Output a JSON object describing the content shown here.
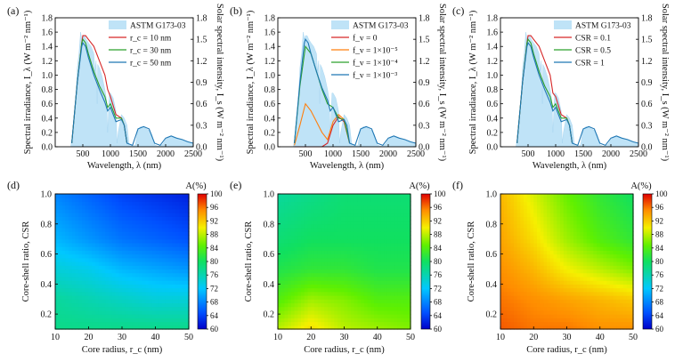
{
  "top_common": {
    "xlabel": "Wavelength, λ (nm)",
    "ylabel_left": "Spectral irradiance, I_λ (W m⁻² nm⁻¹)",
    "ylabel_right": "Solar spectral intensity, I_s (W m⁻² nm⁻¹)",
    "xticks": [
      "500",
      "1000",
      "1500",
      "2000",
      "2500"
    ],
    "yticks_left": [
      "0.0",
      "0.2",
      "0.4",
      "0.6",
      "0.8",
      "1.0",
      "1.2",
      "1.4",
      "1.6",
      "1.8"
    ],
    "yticks_right": [
      "0.0",
      "0.3",
      "0.6",
      "0.9",
      "1.2",
      "1.5",
      "1.8"
    ]
  },
  "bottom_common": {
    "xlabel": "Core radius, r_c (nm)",
    "ylabel": "Core-shell ratio, CSR",
    "xticks": [
      "10",
      "20",
      "30",
      "40",
      "50"
    ],
    "yticks": [
      "0.2",
      "0.4",
      "0.6",
      "0.8",
      "1.0"
    ],
    "colorbar_title": "A(%)",
    "colorbar_ticks": [
      "60",
      "64",
      "68",
      "72",
      "76",
      "80",
      "84",
      "88",
      "92",
      "96",
      "100"
    ]
  },
  "chart_data": [
    {
      "panel": "(a)",
      "type": "line",
      "xlim": [
        0,
        2500
      ],
      "ylim": [
        0,
        1.8
      ],
      "y2lim": [
        0,
        1.8
      ],
      "reference": "ASTM G173-03",
      "series": [
        {
          "name": "r_c = 10 nm",
          "color": "#d62728",
          "x": [
            300,
            400,
            480,
            500,
            550,
            600,
            700,
            800,
            900,
            950,
            1000,
            1100,
            1200,
            1250,
            1300
          ],
          "y": [
            0.05,
            0.9,
            1.45,
            1.55,
            1.55,
            1.5,
            1.4,
            1.2,
            1.0,
            0.8,
            0.7,
            0.45,
            0.4,
            0.3,
            0.05
          ]
        },
        {
          "name": "r_c = 30 nm",
          "color": "#2ca02c",
          "x": [
            300,
            400,
            480,
            500,
            550,
            600,
            700,
            800,
            900,
            950,
            1000,
            1100,
            1200,
            1250,
            1300
          ],
          "y": [
            0.05,
            0.9,
            1.45,
            1.5,
            1.45,
            1.3,
            1.05,
            0.85,
            0.7,
            0.55,
            0.6,
            0.4,
            0.4,
            0.3,
            0.05
          ]
        },
        {
          "name": "r_c = 50 nm",
          "color": "#1f77b4",
          "x": [
            300,
            400,
            480,
            500,
            550,
            600,
            700,
            800,
            900,
            950,
            1000,
            1100,
            1200,
            1250,
            1300,
            1400,
            1500,
            1600,
            1700,
            1800,
            1900,
            2000,
            2100,
            2200,
            2300,
            2400,
            2500
          ],
          "y": [
            0.05,
            0.9,
            1.4,
            1.45,
            1.4,
            1.25,
            1.0,
            0.8,
            0.62,
            0.5,
            0.55,
            0.35,
            0.38,
            0.3,
            0.05,
            0.02,
            0.25,
            0.28,
            0.25,
            0.05,
            0.02,
            0.12,
            0.15,
            0.12,
            0.1,
            0.07,
            0.05
          ]
        }
      ]
    },
    {
      "panel": "(b)",
      "type": "line",
      "xlim": [
        0,
        2500
      ],
      "ylim": [
        0,
        1.8
      ],
      "y2lim": [
        0,
        1.8
      ],
      "reference": "ASTM G173-03",
      "series": [
        {
          "name": "f_v = 0",
          "color": "#d62728",
          "x": [
            300,
            400,
            500,
            600,
            700,
            800,
            900,
            1000,
            1100,
            1200,
            1300
          ],
          "y": [
            0,
            0,
            0,
            0,
            0,
            0,
            0.05,
            0.3,
            0.42,
            0.35,
            0.05
          ]
        },
        {
          "name": "f_v = 1×10⁻⁵",
          "color": "#ff7f0e",
          "x": [
            300,
            400,
            500,
            600,
            700,
            800,
            900,
            1000,
            1100,
            1200,
            1300
          ],
          "y": [
            0.02,
            0.3,
            0.6,
            0.5,
            0.35,
            0.2,
            0.1,
            0.35,
            0.45,
            0.38,
            0.05
          ]
        },
        {
          "name": "f_v = 1×10⁻⁴",
          "color": "#2ca02c",
          "x": [
            300,
            400,
            500,
            600,
            700,
            800,
            900,
            1000,
            1100,
            1200,
            1300
          ],
          "y": [
            0.05,
            0.85,
            1.4,
            1.3,
            1.05,
            0.8,
            0.6,
            0.55,
            0.4,
            0.38,
            0.05
          ]
        },
        {
          "name": "f_v = 1×10⁻³",
          "color": "#1f77b4",
          "x": [
            300,
            400,
            480,
            500,
            550,
            600,
            700,
            800,
            900,
            950,
            1000,
            1100,
            1200,
            1250,
            1300,
            1400,
            1500,
            1600,
            1700,
            1800,
            1900,
            2000,
            2100,
            2200,
            2300,
            2400,
            2500
          ],
          "y": [
            0.05,
            0.9,
            1.45,
            1.5,
            1.45,
            1.3,
            1.05,
            0.82,
            0.65,
            0.5,
            0.55,
            0.35,
            0.38,
            0.3,
            0.05,
            0.02,
            0.25,
            0.28,
            0.25,
            0.05,
            0.02,
            0.12,
            0.15,
            0.12,
            0.1,
            0.07,
            0.05
          ]
        }
      ]
    },
    {
      "panel": "(c)",
      "type": "line",
      "xlim": [
        0,
        2500
      ],
      "ylim": [
        0,
        1.8
      ],
      "y2lim": [
        0,
        1.8
      ],
      "reference": "ASTM G173-03",
      "series": [
        {
          "name": "CSR = 0.1",
          "color": "#d62728",
          "x": [
            300,
            400,
            480,
            500,
            550,
            600,
            700,
            800,
            900,
            950,
            1000,
            1100,
            1200,
            1250,
            1300
          ],
          "y": [
            0.05,
            0.9,
            1.45,
            1.55,
            1.55,
            1.5,
            1.4,
            1.2,
            1.0,
            0.75,
            0.7,
            0.45,
            0.4,
            0.3,
            0.05
          ]
        },
        {
          "name": "CSR = 0.5",
          "color": "#2ca02c",
          "x": [
            300,
            400,
            480,
            500,
            550,
            600,
            700,
            800,
            900,
            950,
            1000,
            1100,
            1200,
            1250,
            1300
          ],
          "y": [
            0.05,
            0.9,
            1.45,
            1.5,
            1.45,
            1.3,
            1.05,
            0.85,
            0.7,
            0.55,
            0.6,
            0.4,
            0.4,
            0.3,
            0.05
          ]
        },
        {
          "name": "CSR = 1",
          "color": "#1f77b4",
          "x": [
            300,
            400,
            480,
            500,
            550,
            600,
            700,
            800,
            900,
            950,
            1000,
            1100,
            1200,
            1250,
            1300,
            1400,
            1500,
            1600,
            1700,
            1800,
            1900,
            2000,
            2100,
            2200,
            2300,
            2400,
            2500
          ],
          "y": [
            0.05,
            0.9,
            1.4,
            1.45,
            1.4,
            1.25,
            1.0,
            0.8,
            0.62,
            0.5,
            0.55,
            0.35,
            0.38,
            0.3,
            0.05,
            0.02,
            0.25,
            0.28,
            0.25,
            0.05,
            0.02,
            0.12,
            0.15,
            0.12,
            0.1,
            0.07,
            0.05
          ]
        }
      ]
    },
    {
      "panel": "(d)",
      "type": "heatmap",
      "xlim": [
        10,
        50
      ],
      "ylim": [
        0.1,
        1.0
      ],
      "zlim": [
        60,
        100
      ],
      "x": [
        10,
        20,
        30,
        40,
        50
      ],
      "y": [
        0.1,
        0.3,
        0.5,
        0.7,
        1.0
      ],
      "z": [
        [
          78,
          78,
          78,
          78,
          78
        ],
        [
          77,
          76,
          75,
          74,
          74
        ],
        [
          74,
          73,
          71,
          70,
          69
        ],
        [
          71,
          69,
          67,
          66,
          65
        ],
        [
          68,
          66,
          64,
          63,
          62
        ]
      ]
    },
    {
      "panel": "(e)",
      "type": "heatmap",
      "xlim": [
        10,
        50
      ],
      "ylim": [
        0.1,
        1.0
      ],
      "zlim": [
        60,
        100
      ],
      "x": [
        10,
        20,
        30,
        40,
        50
      ],
      "y": [
        0.1,
        0.3,
        0.5,
        0.7,
        1.0
      ],
      "z": [
        [
          88,
          91,
          88,
          87,
          86
        ],
        [
          84,
          87,
          86,
          84,
          84
        ],
        [
          81,
          82,
          82,
          81,
          81
        ],
        [
          79,
          80,
          80,
          80,
          80
        ],
        [
          77,
          78,
          79,
          79,
          79
        ]
      ]
    },
    {
      "panel": "(f)",
      "type": "heatmap",
      "xlim": [
        10,
        50
      ],
      "ylim": [
        0.1,
        1.0
      ],
      "zlim": [
        60,
        100
      ],
      "x": [
        10,
        20,
        30,
        40,
        50
      ],
      "y": [
        0.1,
        0.3,
        0.5,
        0.7,
        1.0
      ],
      "z": [
        [
          97,
          96,
          96,
          95,
          95
        ],
        [
          96,
          95,
          94,
          93,
          92
        ],
        [
          95,
          93,
          90,
          88,
          86
        ],
        [
          94,
          91,
          87,
          84,
          82
        ],
        [
          93,
          89,
          85,
          82,
          80
        ]
      ]
    }
  ]
}
